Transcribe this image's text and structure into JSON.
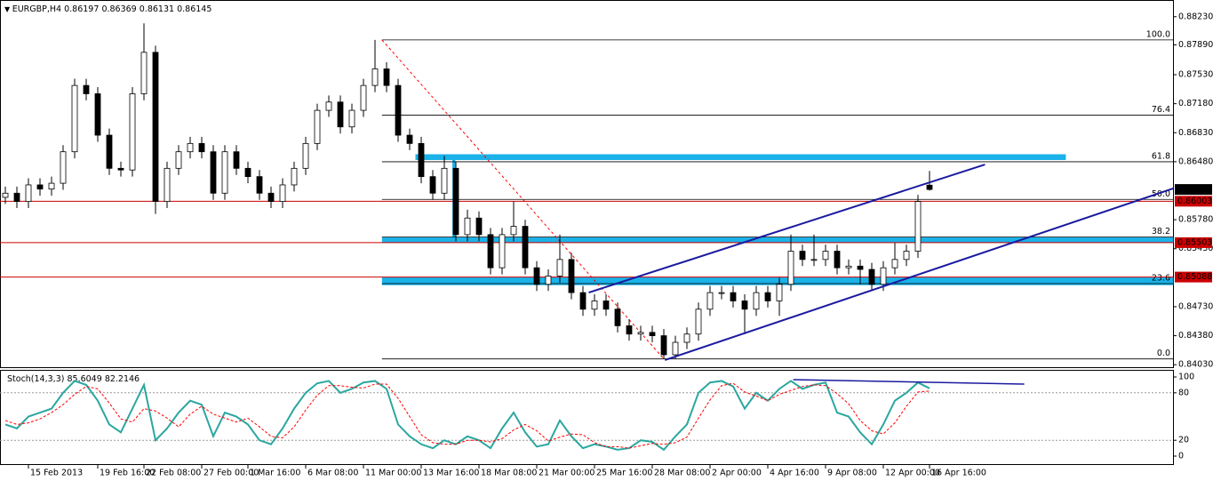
{
  "chart_data": {
    "type": "candlestick",
    "symbol": "EURGBP,H4",
    "ylim": [
      0.84,
      0.8841
    ],
    "yticks": [
      {
        "value": 0.8823,
        "label": "0.88230"
      },
      {
        "value": 0.8789,
        "label": "0.87890"
      },
      {
        "value": 0.8753,
        "label": "0.87530"
      },
      {
        "value": 0.8718,
        "label": "0.87180"
      },
      {
        "value": 0.8683,
        "label": "0.86830"
      },
      {
        "value": 0.8648,
        "label": "0.86480"
      },
      {
        "value": 0.8578,
        "label": "0.85780"
      },
      {
        "value": 0.8543,
        "label": "0.85430"
      },
      {
        "value": 0.8473,
        "label": "0.84730"
      },
      {
        "value": 0.8438,
        "label": "0.84380"
      },
      {
        "value": 0.8403,
        "label": "0.84030"
      }
    ],
    "xticks": [
      {
        "value": 2,
        "label": "15 Feb 2013"
      },
      {
        "value": 8,
        "label": "19 Feb 16:00"
      },
      {
        "value": 12,
        "label": "22 Feb 08:00"
      },
      {
        "value": 17,
        "label": "27 Feb 00:00"
      },
      {
        "value": 21,
        "label": "1 Mar 16:00"
      },
      {
        "value": 26,
        "label": "6 Mar 08:00"
      },
      {
        "value": 31,
        "label": "11 Mar 00:00"
      },
      {
        "value": 36,
        "label": "13 Mar 16:00"
      },
      {
        "value": 41,
        "label": "18 Mar 08:00"
      },
      {
        "value": 46,
        "label": "21 Mar 00:00"
      },
      {
        "value": 51,
        "label": "25 Mar 16:00"
      },
      {
        "value": 56,
        "label": "28 Mar 08:00"
      },
      {
        "value": 61,
        "label": "2 Apr 00:00"
      },
      {
        "value": 66,
        "label": "4 Apr 16:00"
      },
      {
        "value": 71,
        "label": "9 Apr 08:00"
      },
      {
        "value": 76,
        "label": "12 Apr 00:00"
      },
      {
        "value": 80,
        "label": "16 Apr 16:00"
      }
    ],
    "colors": {
      "up": "#ffffff",
      "down": "#000000",
      "wick": "#000000"
    },
    "open": [
      0.8605,
      0.861,
      0.86,
      0.862,
      0.8615,
      0.8622,
      0.866,
      0.874,
      0.873,
      0.868,
      0.864,
      0.8638,
      0.873,
      0.878,
      0.86,
      0.864,
      0.866,
      0.867,
      0.866,
      0.861,
      0.866,
      0.864,
      0.863,
      0.861,
      0.86,
      0.862,
      0.864,
      0.867,
      0.871,
      0.872,
      0.869,
      0.871,
      0.874,
      0.876,
      0.874,
      0.868,
      0.867,
      0.863,
      0.861,
      0.864,
      0.856,
      0.858,
      0.856,
      0.852,
      0.856,
      0.857,
      0.852,
      0.85,
      0.851,
      0.853,
      0.849,
      0.847,
      0.848,
      0.847,
      0.845,
      0.844,
      0.8442,
      0.8438,
      0.8415,
      0.843,
      0.844,
      0.847,
      0.849,
      0.849,
      0.848,
      0.847,
      0.849,
      0.848,
      0.85,
      0.854,
      0.853,
      0.853,
      0.854,
      0.852,
      0.8522,
      0.8518,
      0.85,
      0.852,
      0.853,
      0.854,
      0.86197
    ],
    "high": [
      0.8618,
      0.8618,
      0.8628,
      0.8628,
      0.863,
      0.8668,
      0.8748,
      0.8748,
      0.8738,
      0.8688,
      0.8648,
      0.8738,
      0.8815,
      0.8788,
      0.8648,
      0.8668,
      0.8678,
      0.8678,
      0.8668,
      0.8668,
      0.8668,
      0.8648,
      0.8638,
      0.8618,
      0.8628,
      0.8648,
      0.8678,
      0.8718,
      0.8728,
      0.8728,
      0.8718,
      0.8748,
      0.8795,
      0.8768,
      0.8748,
      0.8688,
      0.8678,
      0.8638,
      0.8655,
      0.8648,
      0.859,
      0.8588,
      0.8568,
      0.8568,
      0.86,
      0.8578,
      0.8528,
      0.8518,
      0.856,
      0.8538,
      0.8498,
      0.8488,
      0.8488,
      0.8478,
      0.8458,
      0.845,
      0.845,
      0.8446,
      0.8438,
      0.8448,
      0.8478,
      0.8498,
      0.8498,
      0.8498,
      0.8488,
      0.8498,
      0.8498,
      0.8508,
      0.856,
      0.8548,
      0.856,
      0.8548,
      0.8548,
      0.853,
      0.853,
      0.8526,
      0.8528,
      0.855,
      0.8548,
      0.8608,
      0.86369
    ],
    "low": [
      0.8597,
      0.8592,
      0.8592,
      0.8607,
      0.8607,
      0.8614,
      0.8652,
      0.8722,
      0.8672,
      0.8632,
      0.863,
      0.863,
      0.8722,
      0.8585,
      0.8592,
      0.8632,
      0.8652,
      0.8652,
      0.8602,
      0.8602,
      0.8632,
      0.8622,
      0.8602,
      0.8592,
      0.8592,
      0.8612,
      0.8632,
      0.8662,
      0.8702,
      0.8682,
      0.8682,
      0.8702,
      0.8732,
      0.8732,
      0.8672,
      0.8662,
      0.8622,
      0.8602,
      0.8602,
      0.8552,
      0.8552,
      0.8552,
      0.8512,
      0.8512,
      0.8552,
      0.8512,
      0.8492,
      0.8492,
      0.8502,
      0.8482,
      0.8462,
      0.8462,
      0.8462,
      0.8442,
      0.8432,
      0.8432,
      0.843,
      0.841,
      0.841,
      0.8422,
      0.8432,
      0.8462,
      0.8482,
      0.8472,
      0.844,
      0.8462,
      0.8472,
      0.8462,
      0.8492,
      0.8522,
      0.8522,
      0.8522,
      0.8512,
      0.8512,
      0.85,
      0.8492,
      0.8492,
      0.8512,
      0.8522,
      0.8532,
      0.86131
    ],
    "close": [
      0.861,
      0.86,
      0.862,
      0.8615,
      0.8622,
      0.866,
      0.874,
      0.873,
      0.868,
      0.864,
      0.8638,
      0.873,
      0.878,
      0.86,
      0.864,
      0.866,
      0.867,
      0.866,
      0.861,
      0.866,
      0.864,
      0.863,
      0.861,
      0.86,
      0.862,
      0.864,
      0.867,
      0.871,
      0.872,
      0.869,
      0.871,
      0.874,
      0.876,
      0.874,
      0.868,
      0.867,
      0.863,
      0.861,
      0.864,
      0.856,
      0.858,
      0.856,
      0.852,
      0.856,
      0.857,
      0.852,
      0.85,
      0.851,
      0.853,
      0.849,
      0.847,
      0.848,
      0.847,
      0.845,
      0.844,
      0.8442,
      0.8438,
      0.8415,
      0.843,
      0.844,
      0.847,
      0.849,
      0.849,
      0.848,
      0.847,
      0.849,
      0.848,
      0.85,
      0.854,
      0.853,
      0.853,
      0.854,
      0.852,
      0.8522,
      0.8518,
      0.85,
      0.852,
      0.853,
      0.854,
      0.86,
      0.86145
    ],
    "hlines": [
      0.86003,
      0.85503,
      0.85088
    ],
    "hline_color": "#cc0000",
    "fib": {
      "start_index": 32.6,
      "end_index": 57,
      "high": 0.8795,
      "low": 0.841,
      "color": "#000000",
      "retrace_color": "#ff0000",
      "levels": [
        {
          "value": 100,
          "label": "100.0"
        },
        76.4,
        61.8,
        {
          "value": 50,
          "label": "50.0"
        },
        38.2,
        23.6,
        {
          "value": 0,
          "label": "0.0"
        }
      ]
    },
    "zones": [
      {
        "start": 35.5,
        "end": 91.8,
        "top": 0.8657,
        "bottom": 0.865
      },
      {
        "start": 32.6,
        "end": 101.1,
        "top": 0.8557,
        "bottom": 0.855
      },
      {
        "start": 32.6,
        "end": 101.1,
        "top": 0.85085,
        "bottom": 0.8499
      },
      {
        "start": 38.7,
        "end": 38.95,
        "top": 0.8655,
        "bottom": 0.8555
      }
    ],
    "zone_color": "#1ab2e8",
    "trendlines": [
      {
        "x": [
          50.5,
          84.8
        ],
        "y": [
          0.84901,
          0.86446
        ]
      },
      {
        "x": [
          57.1,
          101.1
        ],
        "y": [
          0.84086,
          0.86157
        ]
      }
    ],
    "trend_color": "#1a1aa0",
    "stoch": {
      "label": "Stoch(14,3,3)",
      "ylim": [
        0,
        100
      ],
      "yticks": [
        100,
        80,
        20,
        0
      ],
      "levels": [
        80,
        20
      ],
      "main_color": "#2aa7a0",
      "signal_color": "#ff0000",
      "main": [
        40,
        35,
        50,
        55,
        60,
        80,
        95,
        90,
        70,
        40,
        30,
        60,
        90,
        20,
        35,
        55,
        70,
        65,
        25,
        55,
        50,
        40,
        20,
        15,
        35,
        60,
        80,
        92,
        95,
        80,
        85,
        93,
        95,
        85,
        40,
        25,
        15,
        10,
        20,
        15,
        25,
        20,
        10,
        35,
        55,
        30,
        12,
        15,
        45,
        25,
        10,
        15,
        12,
        8,
        10,
        20,
        18,
        8,
        25,
        40,
        80,
        93,
        95,
        88,
        60,
        80,
        70,
        85,
        95,
        85,
        90,
        93,
        55,
        50,
        30,
        15,
        40,
        70,
        80,
        93,
        85.6049
      ],
      "signal": [
        45,
        40,
        42,
        47,
        55,
        65,
        78,
        88,
        85,
        67,
        47,
        43,
        60,
        57,
        48,
        37,
        53,
        63,
        53,
        48,
        43,
        48,
        37,
        25,
        23,
        37,
        58,
        77,
        89,
        89,
        87,
        86,
        91,
        91,
        73,
        50,
        27,
        17,
        15,
        15,
        20,
        20,
        18,
        22,
        33,
        40,
        32,
        19,
        24,
        28,
        27,
        17,
        12,
        12,
        10,
        13,
        16,
        15,
        17,
        24,
        48,
        71,
        89,
        92,
        81,
        76,
        70,
        78,
        83,
        88,
        90,
        89,
        79,
        66,
        45,
        32,
        28,
        42,
        63,
        81,
        82.2146
      ],
      "trendline": {
        "x": [
          68.2,
          88.2
        ],
        "y": [
          96.6,
          91
        ]
      }
    }
  }
}
